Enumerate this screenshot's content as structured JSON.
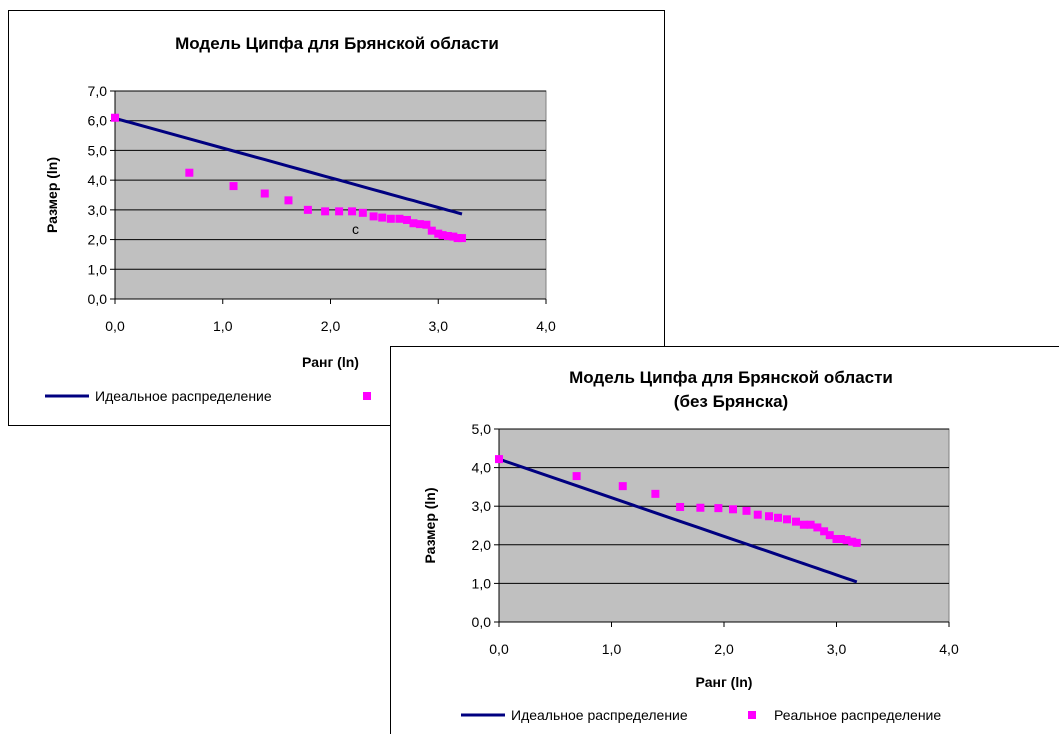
{
  "chart_data": [
    {
      "type": "scatter",
      "title": "Модель Ципфа для Брянской области",
      "subtitle": "",
      "xlabel": "Ранг (ln)",
      "ylabel": "Размер (ln)",
      "xlim": [
        0,
        4
      ],
      "ylim": [
        0,
        7
      ],
      "xticks": [
        "0,0",
        "1,0",
        "2,0",
        "3,0",
        "4,0"
      ],
      "yticks": [
        "0,0",
        "1,0",
        "2,0",
        "3,0",
        "4,0",
        "5,0",
        "6,0",
        "7,0"
      ],
      "grid": true,
      "plot_background": "#c0c0c0",
      "legend_position": "bottom",
      "annotation": "c",
      "series": [
        {
          "name": "Идеальное распределение",
          "kind": "line",
          "color": "#000080",
          "x": [
            0,
            0.69,
            1.1,
            1.39,
            1.61,
            1.79,
            1.95,
            2.08,
            2.2,
            2.3,
            2.4,
            2.48,
            2.56,
            2.64,
            2.71,
            2.77,
            2.83,
            2.89,
            2.94,
            3.0,
            3.04,
            3.09,
            3.14,
            3.18,
            3.22
          ],
          "y": [
            6.08,
            5.39,
            4.98,
            4.69,
            4.47,
            4.29,
            4.13,
            4.0,
            3.88,
            3.78,
            3.68,
            3.6,
            3.52,
            3.44,
            3.37,
            3.31,
            3.25,
            3.19,
            3.14,
            3.08,
            3.04,
            2.99,
            2.94,
            2.9,
            2.86
          ]
        },
        {
          "name": "Реальное распределение",
          "kind": "markers",
          "color": "#ff00ff",
          "x": [
            0,
            0.69,
            1.1,
            1.39,
            1.61,
            1.79,
            1.95,
            2.08,
            2.2,
            2.3,
            2.4,
            2.48,
            2.56,
            2.64,
            2.71,
            2.77,
            2.83,
            2.89,
            2.94,
            3.0,
            3.04,
            3.09,
            3.14,
            3.18,
            3.22
          ],
          "y": [
            6.1,
            4.25,
            3.8,
            3.55,
            3.32,
            3.0,
            2.95,
            2.95,
            2.95,
            2.9,
            2.78,
            2.74,
            2.7,
            2.7,
            2.66,
            2.55,
            2.52,
            2.5,
            2.3,
            2.2,
            2.15,
            2.12,
            2.1,
            2.05,
            2.05
          ]
        }
      ]
    },
    {
      "type": "scatter",
      "title": "Модель Ципфа для Брянской области",
      "subtitle": "(без Брянска)",
      "xlabel": "Ранг (ln)",
      "ylabel": "Размер (ln)",
      "xlim": [
        0,
        4
      ],
      "ylim": [
        0,
        5
      ],
      "xticks": [
        "0,0",
        "1,0",
        "2,0",
        "3,0",
        "4,0"
      ],
      "yticks": [
        "0,0",
        "1,0",
        "2,0",
        "3,0",
        "4,0",
        "5,0"
      ],
      "grid": true,
      "plot_background": "#c0c0c0",
      "legend_position": "bottom",
      "annotation": "",
      "series": [
        {
          "name": "Идеальное распределение",
          "kind": "line",
          "color": "#000080",
          "x": [
            0,
            0.69,
            1.1,
            1.39,
            1.61,
            1.79,
            1.95,
            2.08,
            2.2,
            2.3,
            2.4,
            2.48,
            2.56,
            2.64,
            2.71,
            2.77,
            2.83,
            2.89,
            2.94,
            3.0,
            3.04,
            3.09,
            3.14,
            3.18
          ],
          "y": [
            4.22,
            3.53,
            3.12,
            2.83,
            2.61,
            2.43,
            2.27,
            2.14,
            2.02,
            1.92,
            1.82,
            1.74,
            1.66,
            1.58,
            1.51,
            1.45,
            1.39,
            1.33,
            1.28,
            1.22,
            1.18,
            1.13,
            1.08,
            1.04
          ]
        },
        {
          "name": "Реальное распределение",
          "kind": "markers",
          "color": "#ff00ff",
          "x": [
            0,
            0.69,
            1.1,
            1.39,
            1.61,
            1.79,
            1.95,
            2.08,
            2.2,
            2.3,
            2.4,
            2.48,
            2.56,
            2.64,
            2.71,
            2.77,
            2.83,
            2.89,
            2.94,
            3.0,
            3.04,
            3.09,
            3.14,
            3.18
          ],
          "y": [
            4.22,
            3.78,
            3.52,
            3.32,
            2.98,
            2.96,
            2.95,
            2.92,
            2.88,
            2.78,
            2.74,
            2.7,
            2.66,
            2.6,
            2.52,
            2.52,
            2.45,
            2.35,
            2.25,
            2.15,
            2.15,
            2.12,
            2.08,
            2.05
          ]
        }
      ]
    }
  ]
}
